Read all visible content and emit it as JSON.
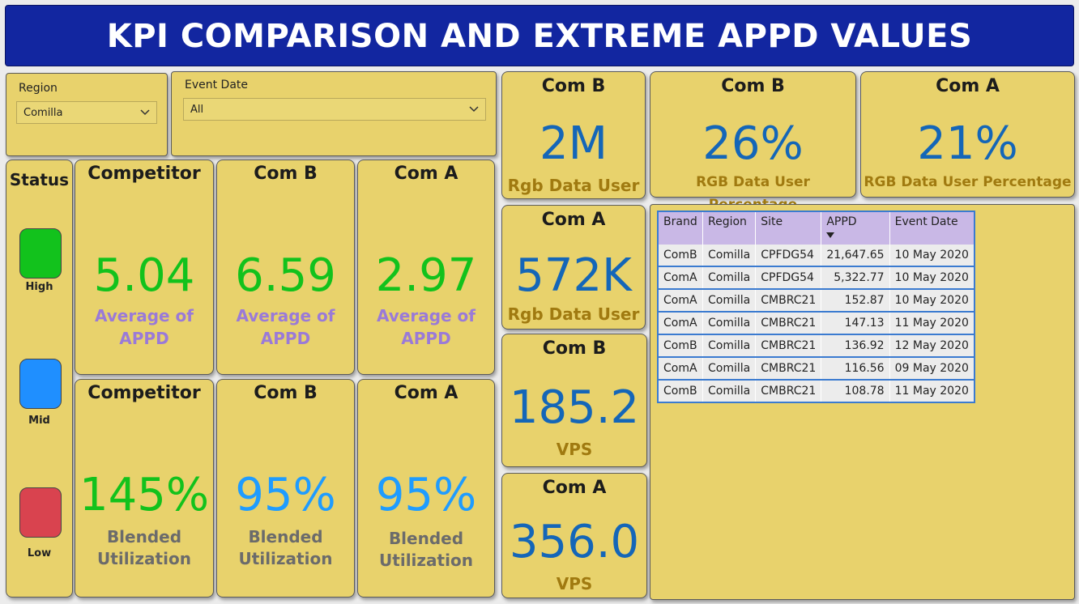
{
  "title": "KPI COMPARISON AND EXTREME APPD VALUES",
  "slicers": {
    "region": {
      "label": "Region",
      "value": "Comilla"
    },
    "event_date": {
      "label": "Event Date",
      "value": "All"
    }
  },
  "status": {
    "title": "Status",
    "levels": [
      {
        "label": "High",
        "color": "#12c21c"
      },
      {
        "label": "Mid",
        "color": "#1f8fff"
      },
      {
        "label": "Low",
        "color": "#d9434f"
      }
    ]
  },
  "appd_cards": [
    {
      "head": "Competitor",
      "value": "5.04",
      "sub1": "Average of",
      "sub2": "APPD"
    },
    {
      "head": "Com B",
      "value": "6.59",
      "sub1": "Average of",
      "sub2": "APPD"
    },
    {
      "head": "Com A",
      "value": "2.97",
      "sub1": "Average of",
      "sub2": "APPD"
    }
  ],
  "util_cards": [
    {
      "head": "Competitor",
      "value": "145%",
      "sub1": "Blended",
      "sub2": "Utilization"
    },
    {
      "head": "Com B",
      "value": "95%",
      "sub1": "Blended",
      "sub2": "Utilization"
    },
    {
      "head": "Com A",
      "value": "95%",
      "sub1": "Blended",
      "sub2": "Utilization"
    }
  ],
  "mid_cards": [
    {
      "head": "Com B",
      "value": "2M",
      "sub": "Rgb Data User"
    },
    {
      "head": "Com A",
      "value": "572K",
      "sub": "Rgb Data User"
    },
    {
      "head": "Com B",
      "value": "185.2",
      "sub": "VPS"
    },
    {
      "head": "Com A",
      "value": "356.0",
      "sub": "VPS"
    }
  ],
  "pct_cards": [
    {
      "head": "Com B",
      "value": "26%",
      "sub": "RGB Data User Percentage"
    },
    {
      "head": "Com A",
      "value": "21%",
      "sub": "RGB Data User Percentage"
    }
  ],
  "table": {
    "columns": [
      "Brand",
      "Region",
      "Site",
      "APPD",
      "Event Date"
    ],
    "rows": [
      [
        "ComB",
        "Comilla",
        "CPFDG54",
        "21,647.65",
        "10 May 2020"
      ],
      [
        "ComA",
        "Comilla",
        "CPFDG54",
        "5,322.77",
        "10 May 2020"
      ],
      [
        "ComA",
        "Comilla",
        "CMBRC21",
        "152.87",
        "10 May 2020"
      ],
      [
        "ComA",
        "Comilla",
        "CMBRC21",
        "147.13",
        "11 May 2020"
      ],
      [
        "ComB",
        "Comilla",
        "CMBRC21",
        "136.92",
        "12 May 2020"
      ],
      [
        "ComA",
        "Comilla",
        "CMBRC21",
        "116.56",
        "09 May 2020"
      ],
      [
        "ComB",
        "Comilla",
        "CMBRC21",
        "108.78",
        "11 May 2020"
      ]
    ]
  }
}
